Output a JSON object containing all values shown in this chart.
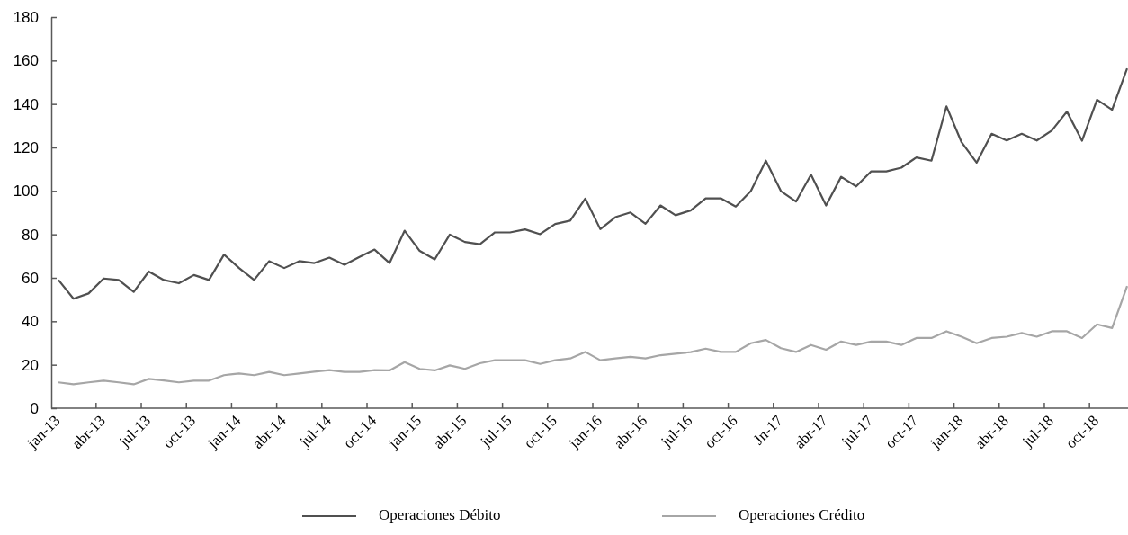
{
  "chart_data": {
    "type": "line",
    "categories": [
      "jan-13",
      null,
      null,
      "abr-13",
      null,
      null,
      "jul-13",
      null,
      null,
      "oct-13",
      null,
      null,
      "jan-14",
      null,
      null,
      "abr-14",
      null,
      null,
      "jul-14",
      null,
      null,
      "oct-14",
      null,
      null,
      "jan-15",
      null,
      null,
      "abr-15",
      null,
      null,
      "jul-15",
      null,
      null,
      "oct-15",
      null,
      null,
      "jan-16",
      null,
      null,
      "abr-16",
      null,
      null,
      "jul-16",
      null,
      null,
      "oct-16",
      null,
      null,
      "Jn-17",
      null,
      null,
      "abr-17",
      null,
      null,
      "jul-17",
      null,
      null,
      "oct-17",
      null,
      null,
      "jan-18",
      null,
      null,
      "abr-18",
      null,
      null,
      "jul-18",
      null,
      null,
      "oct-18",
      null,
      null
    ],
    "series": [
      {
        "name": "Operaciones Débito",
        "color": "#505050",
        "values": [
          59,
          50.4,
          52.8,
          59.7,
          59,
          53.5,
          62.9,
          59,
          57.5,
          61.3,
          59,
          70.7,
          64.5,
          59,
          67.7,
          64.5,
          67.7,
          66.8,
          69.3,
          66,
          69.6,
          73,
          66.8,
          81.7,
          72.4,
          68.5,
          79.9,
          76.5,
          75.5,
          80.9,
          80.9,
          82.3,
          80.1,
          84.8,
          86.3,
          96.5,
          82.4,
          87.9,
          90.1,
          84.9,
          93.3,
          88.8,
          91,
          96.6,
          96.6,
          92.8,
          99.9,
          113.9,
          99.9,
          95.1,
          107.5,
          93.3,
          106.5,
          102.1,
          109,
          109,
          110.7,
          115.4,
          113.9,
          138.9,
          122.4,
          113,
          126.3,
          123.2,
          126.3,
          123.2,
          127.8,
          136.5,
          123.1,
          142,
          137.3,
          156.4
        ]
      },
      {
        "name": "Operaciones Crédito",
        "color": "#a6a6a6",
        "values": [
          11.9,
          11,
          11.9,
          12.7,
          11.9,
          11,
          13.5,
          12.8,
          11.9,
          12.7,
          12.7,
          15.2,
          16,
          15.2,
          16.7,
          15.2,
          16,
          16.8,
          17.5,
          16.7,
          16.7,
          17.5,
          17.4,
          21.2,
          18.1,
          17.4,
          19.7,
          18.1,
          20.7,
          22.1,
          22.1,
          22.1,
          20.4,
          22.1,
          22.9,
          25.9,
          22.1,
          22.9,
          23.6,
          22.9,
          24.4,
          25.1,
          25.8,
          27.4,
          25.9,
          25.9,
          29.9,
          31.4,
          27.6,
          25.9,
          29.1,
          26.9,
          30.7,
          29.1,
          30.7,
          30.7,
          29.1,
          32.3,
          32.3,
          35.4,
          32.9,
          29.9,
          32.3,
          32.9,
          34.6,
          32.9,
          35.4,
          35.4,
          32.3,
          38.6,
          36.9,
          56.2
        ]
      }
    ],
    "ylim": [
      0,
      180
    ],
    "yticks": [
      0,
      20,
      40,
      60,
      80,
      100,
      120,
      140,
      160,
      180
    ],
    "grid": false,
    "legend": "bottom",
    "marker": "none",
    "line_style": "solid"
  }
}
